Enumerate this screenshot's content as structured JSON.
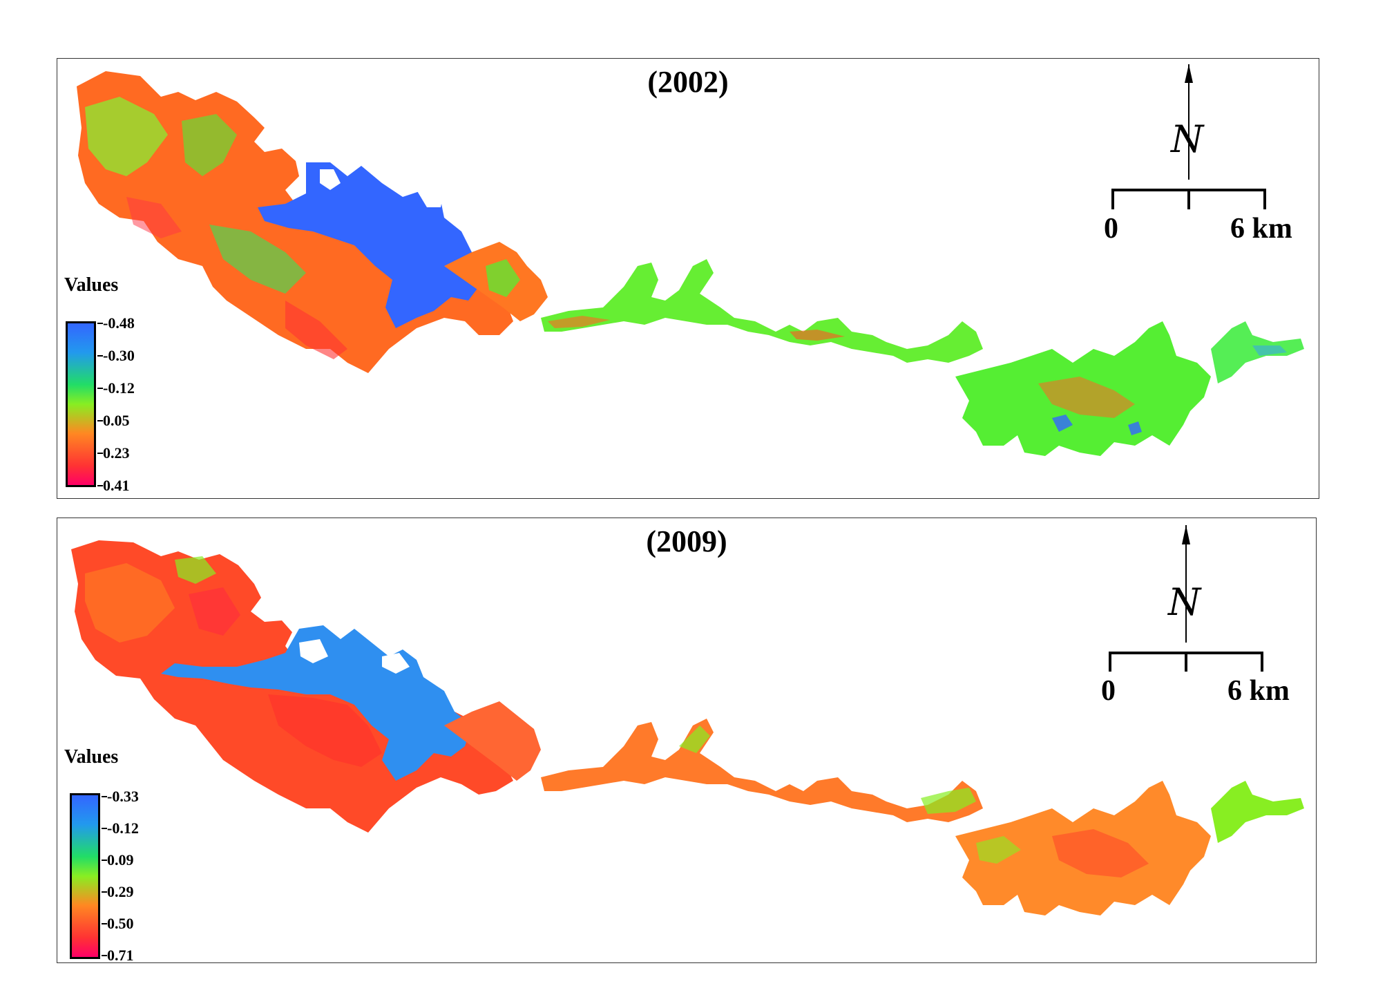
{
  "panels": [
    {
      "title": "(2002)",
      "legend": {
        "title": "Values",
        "ticks": [
          "-0.48",
          "-0.30",
          "-0.12",
          "0.05",
          "0.23",
          "0.41"
        ]
      },
      "scale": {
        "start": "0",
        "end": "6 km"
      },
      "north_symbol": "N"
    },
    {
      "title": "(2009)",
      "legend": {
        "title": "Values",
        "ticks": [
          "-0.33",
          "-0.12",
          "0.09",
          "0.29",
          "0.50",
          "0.71"
        ]
      },
      "scale": {
        "start": "0",
        "end": "6 km"
      },
      "north_symbol": "N"
    }
  ],
  "colors": {
    "low": "#3366ff",
    "mid_low": "#22dd66",
    "mid": "#88ee22",
    "mid_high": "#ff8822",
    "high": "#ff0066"
  },
  "icons": [
    "north-arrow-icon",
    "scale-bar-icon"
  ]
}
